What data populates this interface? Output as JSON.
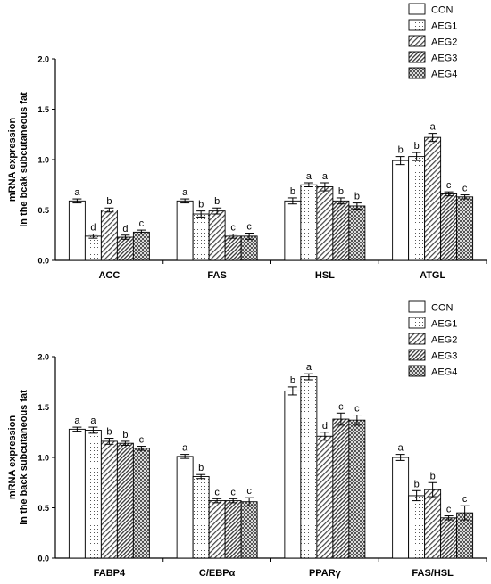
{
  "chart_data": [
    {
      "type": "bar",
      "title": "",
      "ylabel": "mRNA expression in the bcak subcutaneous fat",
      "ylabel_lines": [
        "mRNA expression",
        "in the bcak subcutaneous fat"
      ],
      "xlabel": "",
      "ylim": [
        0,
        2.0
      ],
      "yticks": [
        "0.0",
        "0.5",
        "1.0",
        "1.5",
        "2.0"
      ],
      "grid": false,
      "legend_position": "top-right",
      "categories": [
        "ACC",
        "FAS",
        "HSL",
        "ATGL"
      ],
      "series": [
        {
          "name": "CON",
          "values": [
            0.59,
            0.59,
            0.59,
            0.99
          ],
          "errors": [
            0.02,
            0.02,
            0.03,
            0.04
          ],
          "letters": [
            "a",
            "a",
            "b",
            "b"
          ]
        },
        {
          "name": "AEG1",
          "values": [
            0.24,
            0.46,
            0.75,
            1.03
          ],
          "errors": [
            0.02,
            0.03,
            0.02,
            0.04
          ],
          "letters": [
            "d",
            "b",
            "a",
            "b"
          ]
        },
        {
          "name": "AEG2",
          "values": [
            0.5,
            0.49,
            0.73,
            1.22
          ],
          "errors": [
            0.02,
            0.03,
            0.04,
            0.04
          ],
          "letters": [
            "b",
            "b",
            "a",
            "a"
          ]
        },
        {
          "name": "AEG3",
          "values": [
            0.23,
            0.24,
            0.59,
            0.66
          ],
          "errors": [
            0.02,
            0.02,
            0.03,
            0.02
          ],
          "letters": [
            "d",
            "c",
            "b",
            "c"
          ]
        },
        {
          "name": "AEG4",
          "values": [
            0.28,
            0.24,
            0.54,
            0.63
          ],
          "errors": [
            0.02,
            0.03,
            0.03,
            0.02
          ],
          "letters": [
            "c",
            "c",
            "b",
            "c"
          ]
        }
      ]
    },
    {
      "type": "bar",
      "title": "",
      "ylabel": "mRNA expression in the back subcutaneous fat",
      "ylabel_lines": [
        "mRNA expression",
        "in the back subcutaneous fat"
      ],
      "xlabel": "",
      "ylim": [
        0,
        2.0
      ],
      "yticks": [
        "0.0",
        "0.5",
        "1.0",
        "1.5",
        "2.0"
      ],
      "grid": false,
      "legend_position": "top-right",
      "categories": [
        "FABP4",
        "C/EBPα",
        "PPARγ",
        "FAS/HSL"
      ],
      "series": [
        {
          "name": "CON",
          "values": [
            1.28,
            1.01,
            1.66,
            1.0
          ],
          "errors": [
            0.02,
            0.02,
            0.04,
            0.03
          ],
          "letters": [
            "a",
            "a",
            "b",
            "a"
          ]
        },
        {
          "name": "AEG1",
          "values": [
            1.27,
            0.81,
            1.8,
            0.62
          ],
          "errors": [
            0.03,
            0.02,
            0.03,
            0.05
          ],
          "letters": [
            "a",
            "b",
            "a",
            "b"
          ]
        },
        {
          "name": "AEG2",
          "values": [
            1.16,
            0.57,
            1.21,
            0.68
          ],
          "errors": [
            0.03,
            0.02,
            0.04,
            0.07
          ],
          "letters": [
            "b",
            "c",
            "d",
            "b"
          ]
        },
        {
          "name": "AEG3",
          "values": [
            1.14,
            0.57,
            1.38,
            0.4
          ],
          "errors": [
            0.02,
            0.02,
            0.06,
            0.02
          ],
          "letters": [
            "b",
            "c",
            "c",
            "c"
          ]
        },
        {
          "name": "AEG4",
          "values": [
            1.09,
            0.56,
            1.37,
            0.45
          ],
          "errors": [
            0.02,
            0.04,
            0.05,
            0.07
          ],
          "letters": [
            "c",
            "c",
            "c",
            "c"
          ]
        }
      ]
    }
  ]
}
